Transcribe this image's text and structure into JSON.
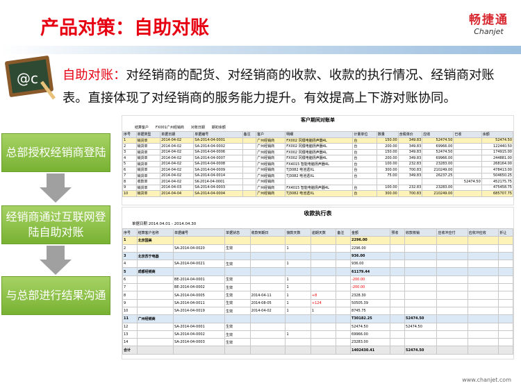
{
  "header": {
    "title": "产品对策：自助对账",
    "logo_cn": "畅捷通",
    "logo_en": "Chanjet"
  },
  "intro": {
    "label": "自助对账：",
    "text": "对经销商的配货、对经销商的收款、收款的执行情况、经销商对账表。直接体现了对经销商的服务能力提升。有效提高上下游对账协同。"
  },
  "flow": [
    "总部授权经销商登陆",
    "经销商通过互联网登陆自助对账",
    "与总部进行结果沟通"
  ],
  "statement": {
    "title": "客户期间对账单",
    "filters": [
      "结算客户",
      "FX001广州经销商",
      "对账日期",
      "期初余额"
    ],
    "columns": [
      "序号",
      "单据类型",
      "单据日期",
      "单据编号",
      "备注",
      "客户",
      "明细",
      "计量单位",
      "数量",
      "含税单价",
      "应收",
      "已收",
      "余额"
    ],
    "rows": [
      [
        "1",
        "销货单",
        "2014-04-02",
        "SA-2014-04-0001",
        null,
        "广州经销商",
        "FX002 冈僵电脑扬声器4L",
        "台",
        "150.00",
        "349.83",
        "52474.50",
        null,
        "52474.50"
      ],
      [
        "2",
        "销货单",
        "2014-04-02",
        "SA-2014-04-0002",
        null,
        "广州经销商",
        "FX002 冈僵电脑扬声器4L",
        "台",
        "200.00",
        "349.83",
        "69966.00",
        null,
        "122440.50"
      ],
      [
        "3",
        "销货单",
        "2014-04-02",
        "SA-2014-04-0006",
        null,
        "广州经销商",
        "FX002 冈僵电脑扬声器4L",
        "台",
        "150.00",
        "349.83",
        "52474.50",
        null,
        "174915.00"
      ],
      [
        "4",
        "销货单",
        "2014-04-02",
        "SA-2014-04-0007",
        null,
        "广州经销商",
        "FX002 冈僵电脑扬声器4L",
        "台",
        "200.00",
        "349.83",
        "69966.00",
        null,
        "244881.00"
      ],
      [
        "5",
        "销货单",
        "2014-04-02",
        "SA-2014-04-0008",
        null,
        "广州经销商",
        "FX4015 智能电脑扬声器4L",
        "台",
        "100.00",
        "232.83",
        "23283.00",
        null,
        "268164.00"
      ],
      [
        "6",
        "销货单",
        "2014-04-02",
        "SA-2014-04-0009",
        null,
        "广州经销商",
        "TJ3082 电池透XL",
        "台",
        "300.00",
        "700.83",
        "210249.00",
        null,
        "478413.00"
      ],
      [
        "7",
        "销货单",
        "2014-04-02",
        "SA-2014-04-0014",
        null,
        "广州经销商",
        "TJ3082 电池透XL",
        "台",
        "75.00",
        "349.83",
        "26237.25",
        null,
        "504650.25"
      ],
      [
        "8",
        "收款单",
        "2014-04-02",
        "SK-2014-04-0001",
        null,
        "广州经销商",
        null,
        null,
        null,
        null,
        null,
        "52474.50",
        "452175.75"
      ],
      [
        "9",
        "销货单",
        "2014-04-03",
        "SA-2014-04-0003",
        null,
        "广州经销商",
        "FX4015 智能电脑扬声器4L",
        "台",
        "100.00",
        "232.83",
        "23283.00",
        null,
        "475458.75"
      ],
      [
        "10",
        "销货单",
        "2014-04-04",
        "SA-2014-04-0004",
        null,
        "广州经销商",
        "TJ3082 电池透XL",
        "台",
        "300.00",
        "700.83",
        "210249.00",
        null,
        "685707.75"
      ]
    ]
  },
  "collection": {
    "title": "收款执行表",
    "filter_label": "单据日期",
    "filter_value": "2014.04.01 - 2014.04.30",
    "columns": [
      "序号",
      "结算客户名称",
      "单据编号",
      "单据状态",
      "收款到期日",
      "接款天数",
      "逾期天数",
      "备注",
      "金额",
      "预收",
      "收款核销",
      "应收冲应付",
      "应收冲应收",
      "折让"
    ],
    "rows": [
      [
        "1",
        "北京国美",
        null,
        null,
        null,
        null,
        null,
        null,
        "2296.00",
        null,
        null,
        null,
        null,
        null
      ],
      [
        "2",
        null,
        "SA-2014-04-0020",
        "生效",
        null,
        "1",
        null,
        null,
        "2296.00",
        null,
        null,
        null,
        null,
        null
      ],
      [
        "3",
        "北京苏宁电器",
        null,
        null,
        null,
        null,
        null,
        null,
        "936.00",
        null,
        null,
        null,
        null,
        null
      ],
      [
        "4",
        null,
        "SA-2014-04-0021",
        "生效",
        null,
        "1",
        null,
        null,
        "936.00",
        null,
        null,
        null,
        null,
        null
      ],
      [
        "5",
        "成都经销商",
        null,
        null,
        null,
        null,
        null,
        null,
        "61179.44",
        null,
        null,
        null,
        null,
        null
      ],
      [
        "6",
        null,
        "BE-2014-04-0001",
        "生效",
        null,
        "1",
        null,
        null,
        "-200.00",
        null,
        null,
        null,
        null,
        null
      ],
      [
        "7",
        null,
        "BE-2014-04-0002",
        "生效",
        null,
        "1",
        null,
        null,
        "-200.00",
        null,
        null,
        null,
        null,
        null
      ],
      [
        "8",
        null,
        "SA-2014-04-0005",
        "生效",
        "2014-04-11",
        "1",
        "+8",
        null,
        "2328.30",
        null,
        null,
        null,
        null,
        null
      ],
      [
        "9",
        null,
        "SA-2014-04-0011",
        "生效",
        "2014-08-05",
        "1",
        "+124",
        null,
        "50505.39",
        null,
        null,
        null,
        null,
        null
      ],
      [
        "10",
        null,
        "SA-2014-04-0019",
        "生效",
        "2014-04-02",
        "1",
        "1",
        null,
        "8745.75",
        null,
        null,
        null,
        null,
        null
      ],
      [
        "11",
        "广州经销商",
        null,
        null,
        null,
        null,
        null,
        null,
        "T30182.25",
        null,
        "52474.50",
        null,
        null,
        null
      ],
      [
        "12",
        null,
        "SA-2014-04-0001",
        "生效",
        null,
        null,
        null,
        null,
        "52474.50",
        null,
        "52474.50",
        null,
        null,
        null
      ],
      [
        "13",
        null,
        "SA-2014-04-0002",
        "生效",
        null,
        "1",
        null,
        null,
        "69966.00",
        null,
        null,
        null,
        null,
        null
      ],
      [
        "14",
        null,
        "SA-2014-04-0003",
        "生效",
        null,
        null,
        null,
        null,
        "23283.00",
        null,
        null,
        null,
        null,
        null
      ],
      [
        "合计",
        null,
        null,
        null,
        null,
        null,
        null,
        null,
        "1402430.41",
        null,
        "52474.50",
        null,
        null,
        null
      ]
    ]
  },
  "footer": "www.chanjet.com"
}
